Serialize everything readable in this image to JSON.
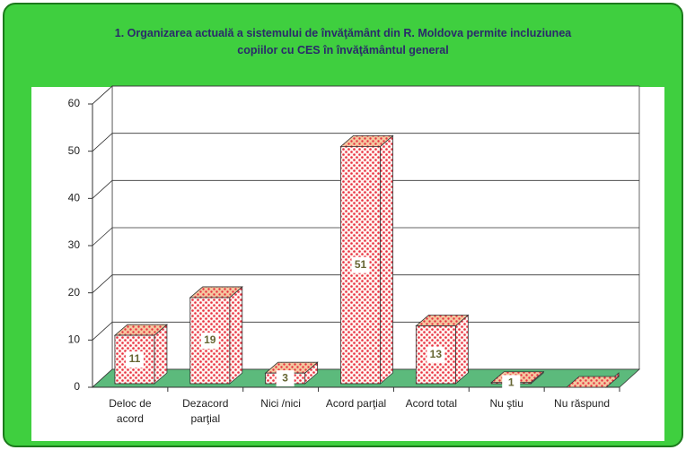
{
  "chart_data": {
    "type": "bar3d",
    "title_lines": [
      "1. Organizarea actuală  a sistemului de învăţământ din R. Moldova permite incluziunea",
      "copiilor cu CES în învăţământul general"
    ],
    "categories": [
      "Deloc de acord",
      "Dezacord parţial",
      "Nici /nici",
      "Acord parţial",
      "Acord total",
      "Nu ştiu",
      "Nu răspund"
    ],
    "values": [
      11,
      19,
      3,
      51,
      13,
      1,
      0
    ],
    "color": "#e83040",
    "ylim": [
      0,
      60
    ],
    "yticks": [
      0,
      10,
      20,
      30,
      40,
      50,
      60
    ],
    "grid": true
  }
}
